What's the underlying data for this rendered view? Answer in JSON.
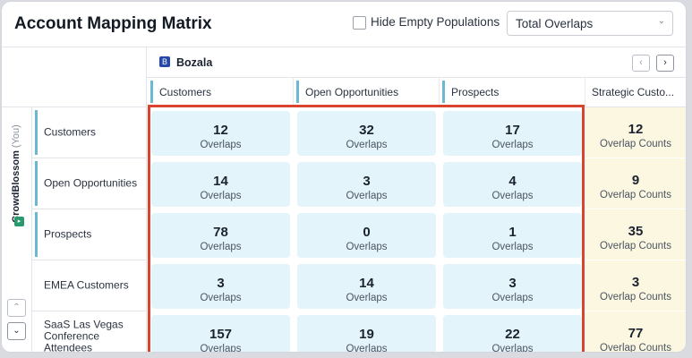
{
  "header": {
    "title": "Account Mapping Matrix",
    "hide_empty_label": "Hide Empty Populations",
    "hide_empty_checked": false,
    "metric_select": {
      "value": "Total Overlaps",
      "chevron": "⌄"
    }
  },
  "partner": {
    "logo": "B",
    "name": "Bozala",
    "prev": "‹",
    "next": "›"
  },
  "columns": [
    {
      "label": "Customers"
    },
    {
      "label": "Open Opportunities"
    },
    {
      "label": "Prospects"
    },
    {
      "label": "Strategic Custo..."
    }
  ],
  "you": {
    "name": "CrowdBlossom",
    "tag": "(You)",
    "logo": "▸",
    "up": "⌃",
    "down": "⌄"
  },
  "rows": [
    {
      "label": "Customers",
      "bar": true
    },
    {
      "label": "Open Opportunities",
      "bar": true
    },
    {
      "label": "Prospects",
      "bar": true
    },
    {
      "label": "EMEA Customers",
      "bar": false
    },
    {
      "label": "SaaS Las Vegas Conference Attendees",
      "bar": false
    }
  ],
  "cells": [
    [
      {
        "value": "12",
        "unit": "Overlaps"
      },
      {
        "value": "32",
        "unit": "Overlaps"
      },
      {
        "value": "17",
        "unit": "Overlaps"
      },
      {
        "value": "12",
        "unit": "Overlap Counts"
      }
    ],
    [
      {
        "value": "14",
        "unit": "Overlaps"
      },
      {
        "value": "3",
        "unit": "Overlaps"
      },
      {
        "value": "4",
        "unit": "Overlaps"
      },
      {
        "value": "9",
        "unit": "Overlap Counts"
      }
    ],
    [
      {
        "value": "78",
        "unit": "Overlaps"
      },
      {
        "value": "0",
        "unit": "Overlaps"
      },
      {
        "value": "1",
        "unit": "Overlaps"
      },
      {
        "value": "35",
        "unit": "Overlap Counts"
      }
    ],
    [
      {
        "value": "3",
        "unit": "Overlaps"
      },
      {
        "value": "14",
        "unit": "Overlaps"
      },
      {
        "value": "3",
        "unit": "Overlaps"
      },
      {
        "value": "3",
        "unit": "Overlap Counts"
      }
    ],
    [
      {
        "value": "157",
        "unit": "Overlaps"
      },
      {
        "value": "19",
        "unit": "Overlaps"
      },
      {
        "value": "22",
        "unit": "Overlaps"
      },
      {
        "value": "77",
        "unit": "Overlap Counts"
      }
    ]
  ],
  "colors": {
    "accent_bar": "#6cb7d2",
    "cell_bg": "#e3f4fa",
    "strategic_bg": "#fcf7e0",
    "highlight": "#d9432f"
  }
}
